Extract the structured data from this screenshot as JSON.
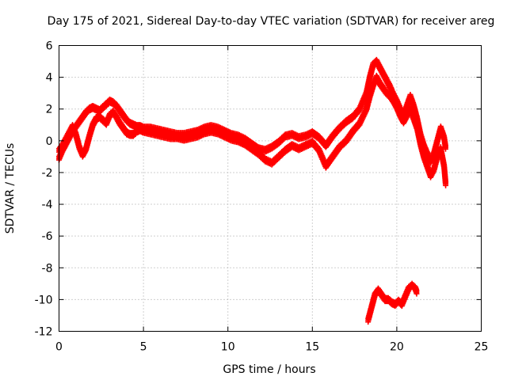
{
  "chart_data": {
    "type": "scatter",
    "title": "Day 175 of 2021, Sidereal Day-to-day VTEC variation (SDTVAR) for receiver areg",
    "xlabel": "GPS time / hours",
    "ylabel": "SDTVAR / TECUs",
    "xlim": [
      0,
      25
    ],
    "ylim": [
      -12,
      6
    ],
    "xticks": [
      0,
      5,
      10,
      15,
      20,
      25
    ],
    "yticks": [
      -12,
      -10,
      -8,
      -6,
      -4,
      -2,
      0,
      2,
      4,
      6
    ],
    "grid": true,
    "marker": "plus",
    "series": [
      {
        "name": "SDTVAR",
        "color": "#ff0000",
        "bands": [
          {
            "x": [
              0.0,
              0.2,
              0.4,
              0.6,
              0.8,
              1.0,
              1.2,
              1.4,
              1.6,
              1.8,
              2.0,
              2.2,
              2.4,
              2.6,
              2.8,
              3.0,
              3.2,
              3.4,
              3.6,
              3.8,
              4.0,
              4.2,
              4.4,
              4.6,
              4.8,
              5.0,
              5.4,
              5.8,
              6.2,
              6.6,
              7.0,
              7.4,
              7.8,
              8.2,
              8.6,
              9.0,
              9.4,
              9.8,
              10.2,
              10.6,
              11.0,
              11.4,
              11.8,
              12.2,
              12.6,
              13.0,
              13.4,
              13.8,
              14.2,
              14.6,
              15.0,
              15.4,
              15.8,
              16.2,
              16.6,
              17.0,
              17.4,
              17.8,
              18.2,
              18.4,
              18.6,
              18.8,
              19.0,
              19.2,
              19.4,
              19.6,
              19.8,
              20.0,
              20.2,
              20.4,
              20.6,
              20.8,
              21.0,
              21.2,
              21.4,
              21.6,
              21.8,
              22.0,
              22.2,
              22.4,
              22.6,
              22.8,
              22.9
            ],
            "y": [
              -1.1,
              -0.6,
              -0.2,
              0.2,
              0.6,
              0.9,
              1.2,
              1.5,
              1.8,
              2.0,
              2.1,
              2.0,
              1.9,
              2.1,
              2.3,
              2.5,
              2.4,
              2.2,
              1.9,
              1.6,
              1.3,
              1.1,
              1.0,
              0.9,
              0.9,
              0.8,
              0.8,
              0.7,
              0.6,
              0.5,
              0.4,
              0.4,
              0.5,
              0.6,
              0.8,
              0.9,
              0.8,
              0.6,
              0.4,
              0.3,
              0.1,
              -0.2,
              -0.5,
              -0.6,
              -0.4,
              -0.1,
              0.3,
              0.4,
              0.2,
              0.3,
              0.5,
              0.2,
              -0.3,
              0.3,
              0.8,
              1.2,
              1.5,
              2.0,
              3.0,
              4.0,
              4.8,
              5.0,
              4.6,
              4.2,
              3.8,
              3.4,
              2.9,
              2.5,
              2.0,
              1.6,
              2.2,
              2.8,
              2.2,
              1.4,
              0.4,
              -0.3,
              -0.8,
              -1.3,
              -0.8,
              0.0,
              0.8,
              0.2,
              -0.5
            ]
          },
          {
            "x": [
              0.0,
              0.2,
              0.4,
              0.6,
              0.8,
              1.0,
              1.2,
              1.4,
              1.6,
              1.8,
              2.0,
              2.2,
              2.4,
              2.6,
              2.8,
              3.0,
              3.2,
              3.4,
              3.6,
              3.8,
              4.0,
              4.2,
              4.4,
              4.6,
              4.8,
              5.0,
              5.4,
              5.8,
              6.2,
              6.6,
              7.0,
              7.4,
              7.8,
              8.2,
              8.6,
              9.0,
              9.4,
              9.8,
              10.2,
              10.6,
              11.0,
              11.4,
              11.8,
              12.2,
              12.6,
              13.0,
              13.4,
              13.8,
              14.2,
              14.6,
              15.0,
              15.4,
              15.8,
              16.2,
              16.6,
              17.0,
              17.4,
              17.8,
              18.2,
              18.4,
              18.6,
              18.8,
              19.0,
              19.2,
              19.4,
              19.6,
              19.8,
              20.0,
              20.2,
              20.4,
              20.6,
              20.8,
              21.0,
              21.2,
              21.4,
              21.6,
              21.8,
              22.0,
              22.2,
              22.4,
              22.6,
              22.8,
              22.9
            ],
            "y": [
              -0.6,
              -0.3,
              0.1,
              0.5,
              0.9,
              0.4,
              -0.4,
              -0.9,
              -0.5,
              0.3,
              1.0,
              1.4,
              1.5,
              1.3,
              1.1,
              1.6,
              1.8,
              1.5,
              1.1,
              0.8,
              0.5,
              0.4,
              0.4,
              0.6,
              0.7,
              0.6,
              0.5,
              0.4,
              0.3,
              0.2,
              0.2,
              0.1,
              0.2,
              0.3,
              0.5,
              0.6,
              0.5,
              0.3,
              0.1,
              0.0,
              -0.2,
              -0.5,
              -0.8,
              -1.2,
              -1.4,
              -1.0,
              -0.6,
              -0.3,
              -0.5,
              -0.3,
              -0.1,
              -0.6,
              -1.6,
              -1.0,
              -0.4,
              0.0,
              0.6,
              1.1,
              2.0,
              2.8,
              3.5,
              4.0,
              3.6,
              3.3,
              3.0,
              2.8,
              2.5,
              2.1,
              1.6,
              1.2,
              1.6,
              2.0,
              1.4,
              0.8,
              -0.2,
              -1.0,
              -1.6,
              -2.2,
              -1.8,
              -1.0,
              -0.5,
              -1.6,
              -2.8
            ]
          },
          {
            "x": [
              18.3,
              18.5,
              18.7,
              18.9,
              19.1,
              19.3,
              19.5,
              19.7,
              19.9,
              20.1,
              20.3,
              20.5,
              20.7,
              20.9,
              21.1,
              21.2
            ],
            "y": [
              -11.3,
              -10.5,
              -9.7,
              -9.4,
              -9.7,
              -10.0,
              -10.0,
              -10.2,
              -10.3,
              -10.1,
              -10.3,
              -9.8,
              -9.3,
              -9.1,
              -9.3,
              -9.6
            ]
          }
        ]
      }
    ]
  }
}
